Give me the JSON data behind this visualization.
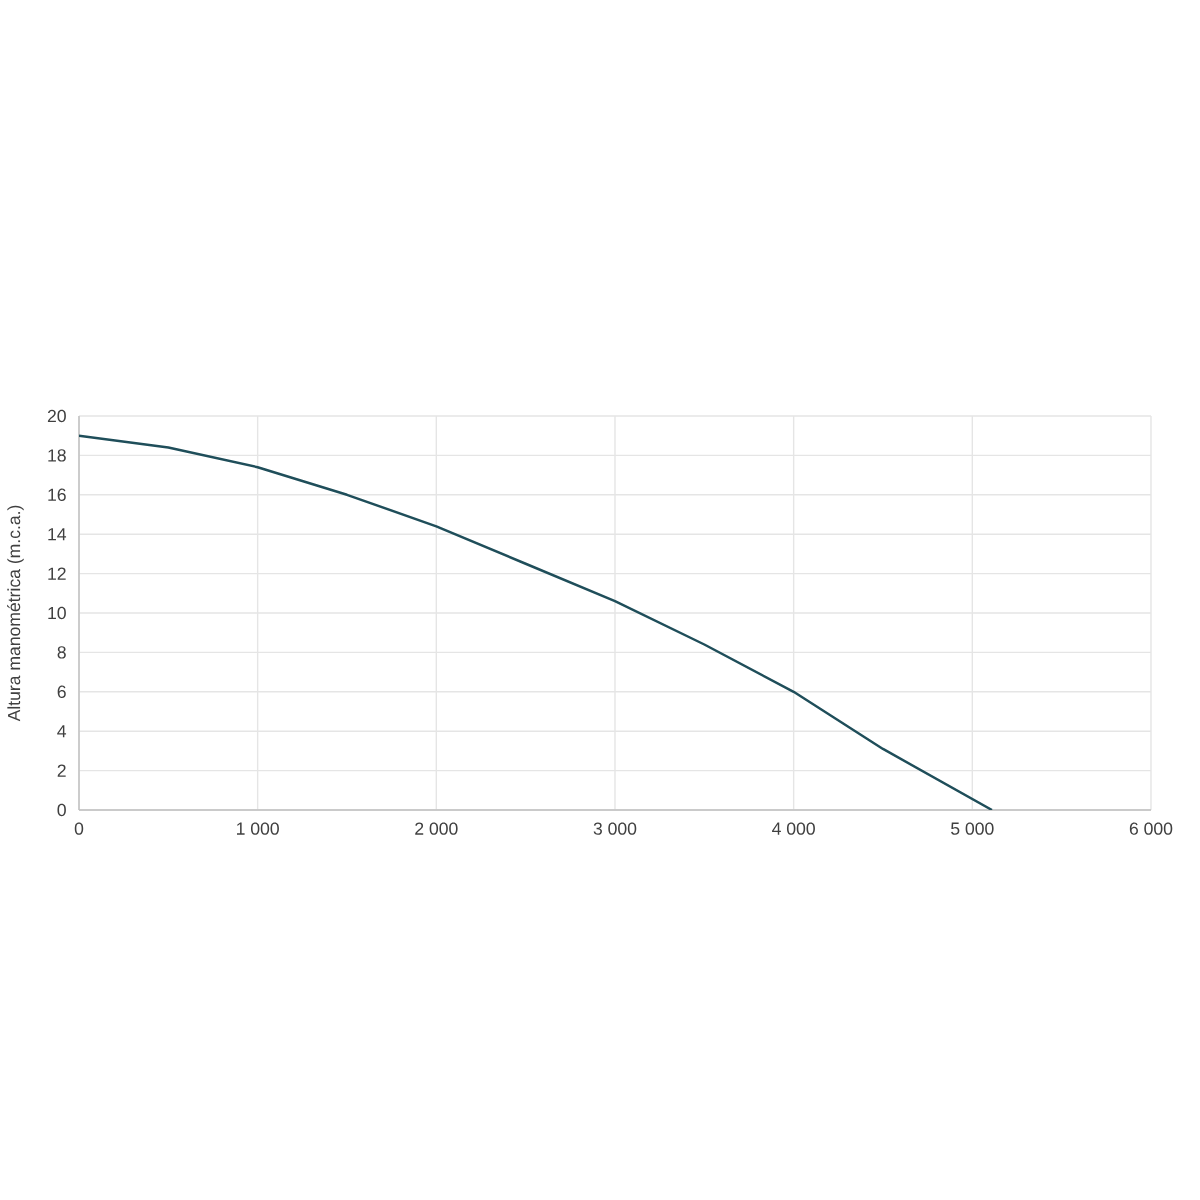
{
  "chart_data": {
    "type": "line",
    "ylabel": "Altura manométrica (m.c.a.)",
    "x": [
      0,
      500,
      1000,
      1500,
      2000,
      2500,
      3000,
      3500,
      4000,
      4500,
      5110
    ],
    "series": [
      {
        "color": "#1f4e5a",
        "values": [
          19.0,
          18.4,
          17.4,
          16.0,
          14.4,
          12.5,
          10.6,
          8.4,
          6.0,
          3.1,
          0
        ]
      }
    ],
    "xlim": [
      0,
      6000
    ],
    "ylim": [
      0,
      20
    ],
    "xticks": [
      0,
      {
        "value": 1000,
        "label": "1 000"
      },
      {
        "value": 2000,
        "label": "2 000"
      },
      {
        "value": 3000,
        "label": "3 000"
      },
      {
        "value": 4000,
        "label": "4 000"
      },
      {
        "value": 5000,
        "label": "5 000"
      },
      {
        "value": 6000,
        "label": "6 000"
      }
    ],
    "yticks": [
      0,
      2,
      4,
      6,
      8,
      10,
      12,
      14,
      16,
      18,
      20
    ],
    "grid": true,
    "marker": "none",
    "line_style": "solid"
  }
}
